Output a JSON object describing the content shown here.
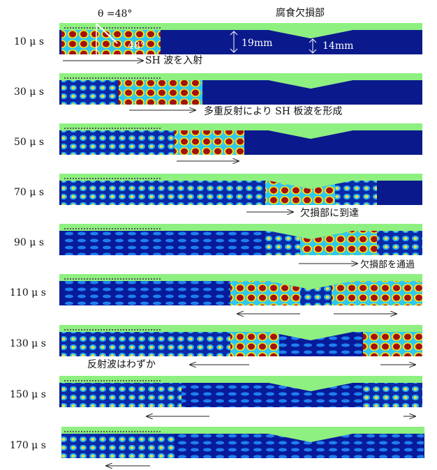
{
  "header": {
    "angle": "θ =48°",
    "defect": "腐食欠損部",
    "incident_angle": "48°",
    "thickness": "19mm",
    "thin_thickness": "14mm"
  },
  "panels": [
    {
      "time": "10 μ s",
      "notes": [
        "SH 波を入射"
      ]
    },
    {
      "time": "30 μ s",
      "notes": [
        "多重反射により SH 板波を形成"
      ]
    },
    {
      "time": "50 μ s",
      "notes": []
    },
    {
      "time": "70 μ s",
      "notes": [
        "欠損部に到達"
      ]
    },
    {
      "time": "90 μ s",
      "notes": [
        "欠損部を通過"
      ]
    },
    {
      "time": "110 μ s",
      "notes": []
    },
    {
      "time": "130 μ s",
      "notes": [
        "反射波はわずか"
      ]
    },
    {
      "time": "150 μ s",
      "notes": []
    },
    {
      "time": "170 μ s",
      "notes": []
    }
  ]
}
